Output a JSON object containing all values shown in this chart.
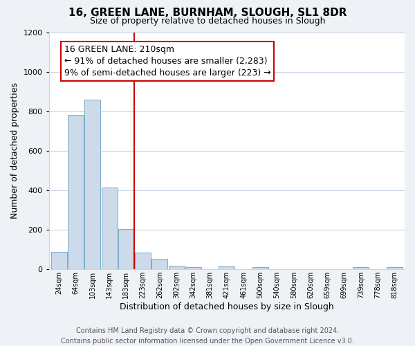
{
  "title": "16, GREEN LANE, BURNHAM, SLOUGH, SL1 8DR",
  "subtitle": "Size of property relative to detached houses in Slough",
  "xlabel": "Distribution of detached houses by size in Slough",
  "ylabel": "Number of detached properties",
  "bar_labels": [
    "24sqm",
    "64sqm",
    "103sqm",
    "143sqm",
    "183sqm",
    "223sqm",
    "262sqm",
    "302sqm",
    "342sqm",
    "381sqm",
    "421sqm",
    "461sqm",
    "500sqm",
    "540sqm",
    "580sqm",
    "620sqm",
    "659sqm",
    "699sqm",
    "739sqm",
    "778sqm",
    "818sqm"
  ],
  "bar_values": [
    90,
    780,
    860,
    415,
    205,
    85,
    55,
    20,
    10,
    0,
    15,
    0,
    10,
    0,
    0,
    0,
    0,
    0,
    10,
    0,
    10
  ],
  "bar_color": "#ccdaea",
  "bar_edge_color": "#7aaac8",
  "vline_color": "#cc0000",
  "vline_x_idx": 5,
  "annotation_line1": "16 GREEN LANE: 210sqm",
  "annotation_line2": "← 91% of detached houses are smaller (2,283)",
  "annotation_line3": "9% of semi-detached houses are larger (223) →",
  "ylim": [
    0,
    1200
  ],
  "yticks": [
    0,
    200,
    400,
    600,
    800,
    1000,
    1200
  ],
  "footer_text": "Contains HM Land Registry data © Crown copyright and database right 2024.\nContains public sector information licensed under the Open Government Licence v3.0.",
  "bg_color": "#eef2f7",
  "plot_bg_color": "#ffffff",
  "grid_color": "#c8d4e4",
  "title_fontsize": 11,
  "subtitle_fontsize": 9,
  "annotation_fontsize": 9,
  "footer_fontsize": 7,
  "xlabel_fontsize": 9,
  "ylabel_fontsize": 9
}
